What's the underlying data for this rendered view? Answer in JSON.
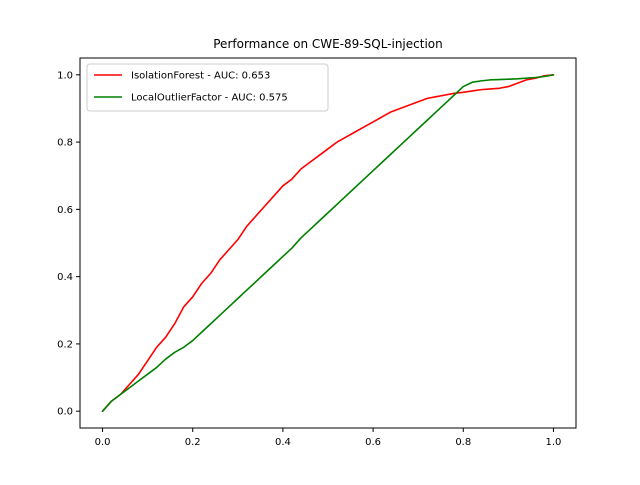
{
  "chart_data": {
    "type": "line",
    "title": "Performance on CWE-89-SQL-injection",
    "xlabel": "",
    "ylabel": "",
    "xlim": [
      -0.05,
      1.05
    ],
    "ylim": [
      -0.05,
      1.05
    ],
    "xticks": [
      0.0,
      0.2,
      0.4,
      0.6,
      0.8,
      1.0
    ],
    "xtick_labels": [
      "0.0",
      "0.2",
      "0.4",
      "0.6",
      "0.8",
      "1.0"
    ],
    "yticks": [
      0.0,
      0.2,
      0.4,
      0.6,
      0.8,
      1.0
    ],
    "ytick_labels": [
      "0.0",
      "0.2",
      "0.4",
      "0.6",
      "0.8",
      "1.0"
    ],
    "grid": false,
    "legend_position": "top-left",
    "series": [
      {
        "name": "IsolationForest - AUC: 0.653",
        "color": "#ff0000",
        "x": [
          0.0,
          0.02,
          0.04,
          0.06,
          0.08,
          0.1,
          0.12,
          0.14,
          0.16,
          0.18,
          0.2,
          0.22,
          0.24,
          0.26,
          0.28,
          0.3,
          0.32,
          0.34,
          0.36,
          0.38,
          0.4,
          0.42,
          0.44,
          0.46,
          0.48,
          0.5,
          0.52,
          0.54,
          0.56,
          0.58,
          0.6,
          0.62,
          0.64,
          0.66,
          0.68,
          0.7,
          0.72,
          0.74,
          0.76,
          0.78,
          0.8,
          0.82,
          0.84,
          0.86,
          0.88,
          0.9,
          0.92,
          0.94,
          0.96,
          0.98,
          1.0
        ],
        "y": [
          0.0,
          0.03,
          0.05,
          0.08,
          0.11,
          0.15,
          0.19,
          0.22,
          0.26,
          0.31,
          0.34,
          0.38,
          0.41,
          0.45,
          0.48,
          0.51,
          0.55,
          0.58,
          0.61,
          0.64,
          0.67,
          0.69,
          0.72,
          0.74,
          0.76,
          0.78,
          0.8,
          0.815,
          0.83,
          0.845,
          0.86,
          0.875,
          0.89,
          0.9,
          0.91,
          0.92,
          0.93,
          0.935,
          0.94,
          0.945,
          0.948,
          0.952,
          0.956,
          0.958,
          0.96,
          0.965,
          0.975,
          0.985,
          0.99,
          0.997,
          1.0
        ]
      },
      {
        "name": "LocalOutlierFactor - AUC: 0.575",
        "color": "#008000",
        "x": [
          0.0,
          0.02,
          0.04,
          0.06,
          0.08,
          0.1,
          0.12,
          0.14,
          0.16,
          0.18,
          0.2,
          0.22,
          0.24,
          0.26,
          0.28,
          0.3,
          0.32,
          0.34,
          0.36,
          0.38,
          0.4,
          0.42,
          0.44,
          0.46,
          0.48,
          0.5,
          0.52,
          0.54,
          0.56,
          0.58,
          0.6,
          0.62,
          0.64,
          0.66,
          0.68,
          0.7,
          0.72,
          0.74,
          0.76,
          0.78,
          0.8,
          0.82,
          0.84,
          0.86,
          0.88,
          0.9,
          0.92,
          0.94,
          0.96,
          0.98,
          1.0
        ],
        "y": [
          0.0,
          0.03,
          0.05,
          0.07,
          0.09,
          0.11,
          0.13,
          0.155,
          0.175,
          0.19,
          0.21,
          0.235,
          0.26,
          0.285,
          0.31,
          0.335,
          0.36,
          0.385,
          0.41,
          0.435,
          0.46,
          0.485,
          0.515,
          0.54,
          0.565,
          0.59,
          0.615,
          0.64,
          0.665,
          0.69,
          0.715,
          0.74,
          0.765,
          0.79,
          0.815,
          0.84,
          0.865,
          0.89,
          0.915,
          0.94,
          0.965,
          0.978,
          0.982,
          0.985,
          0.986,
          0.987,
          0.988,
          0.99,
          0.992,
          0.995,
          1.0
        ]
      }
    ]
  }
}
